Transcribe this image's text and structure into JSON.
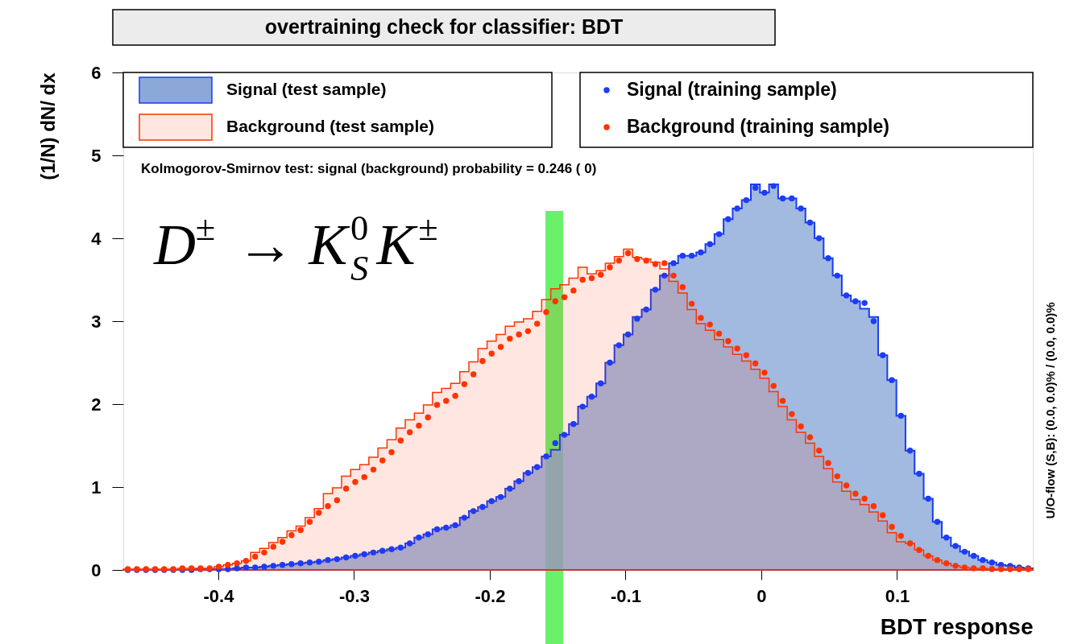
{
  "chart_data": {
    "type": "histogram",
    "title": "overtraining check for classifier: BDT",
    "xlabel": "BDT response",
    "ylabel": "(1/N) dN/ dx",
    "xlim": [
      -0.47,
      0.2
    ],
    "ylim": [
      0,
      6
    ],
    "xticks": [
      -0.4,
      -0.3,
      -0.2,
      -0.1,
      0,
      0.1
    ],
    "yticks": [
      0,
      1,
      2,
      3,
      4,
      5,
      6
    ],
    "legend": "top",
    "marker": "circle",
    "bins": [
      -0.47,
      -0.4633,
      -0.4566,
      -0.4499,
      -0.4432,
      -0.4365,
      -0.4298,
      -0.4231,
      -0.4164,
      -0.4097,
      -0.403,
      -0.3963,
      -0.3896,
      -0.3829,
      -0.3762,
      -0.3695,
      -0.3628,
      -0.3561,
      -0.3494,
      -0.3427,
      -0.336,
      -0.3293,
      -0.3226,
      -0.3159,
      -0.3092,
      -0.3025,
      -0.2958,
      -0.2891,
      -0.2824,
      -0.2757,
      -0.269,
      -0.2623,
      -0.2556,
      -0.2489,
      -0.2422,
      -0.2355,
      -0.2288,
      -0.2221,
      -0.2154,
      -0.2087,
      -0.202,
      -0.1953,
      -0.1886,
      -0.1819,
      -0.1752,
      -0.1685,
      -0.1618,
      -0.1551,
      -0.1484,
      -0.1417,
      -0.135,
      -0.1283,
      -0.1216,
      -0.1149,
      -0.1082,
      -0.1015,
      -0.0948,
      -0.0881,
      -0.0814,
      -0.0747,
      -0.068,
      -0.0613,
      -0.0546,
      -0.0479,
      -0.0412,
      -0.0345,
      -0.0278,
      -0.0211,
      -0.0144,
      -0.0077,
      -0.001,
      0.0057,
      0.0124,
      0.0191,
      0.0258,
      0.0325,
      0.0392,
      0.0459,
      0.0526,
      0.0593,
      0.066,
      0.0727,
      0.0794,
      0.0861,
      0.0928,
      0.0995,
      0.1062,
      0.1129,
      0.1196,
      0.1263,
      0.133,
      0.1397,
      0.1464,
      0.1531,
      0.1598,
      0.1665,
      0.1732,
      0.1799,
      0.1866,
      0.1933,
      0.2
    ],
    "series": [
      {
        "name": "Signal (test sample)",
        "type": "histogram",
        "color": "#8ba8d8",
        "values": [
          0,
          0,
          0,
          0,
          0,
          0,
          0,
          0,
          0.01,
          0.01,
          0.01,
          0.01,
          0.02,
          0.03,
          0.03,
          0.04,
          0.05,
          0.06,
          0.07,
          0.08,
          0.09,
          0.1,
          0.12,
          0.13,
          0.15,
          0.17,
          0.19,
          0.21,
          0.23,
          0.25,
          0.27,
          0.32,
          0.39,
          0.43,
          0.49,
          0.51,
          0.54,
          0.63,
          0.71,
          0.76,
          0.83,
          0.88,
          0.98,
          1.07,
          1.17,
          1.24,
          1.37,
          1.45,
          1.63,
          1.76,
          1.97,
          2.09,
          2.25,
          2.5,
          2.71,
          2.84,
          3.05,
          3.14,
          3.38,
          3.55,
          3.7,
          3.79,
          3.79,
          3.83,
          3.93,
          4.05,
          4.23,
          4.36,
          4.46,
          4.65,
          4.55,
          4.65,
          4.48,
          4.48,
          4.36,
          4.19,
          4.0,
          3.76,
          3.55,
          3.31,
          3.24,
          3.15,
          3.05,
          2.59,
          2.29,
          1.86,
          1.44,
          1.16,
          0.86,
          0.58,
          0.39,
          0.29,
          0.22,
          0.17,
          0.12,
          0.09,
          0.06,
          0.05,
          0.03,
          0.02
        ]
      },
      {
        "name": "Background (test sample)",
        "type": "histogram",
        "color": "#ff3300",
        "values": [
          0.01,
          0.01,
          0.01,
          0.01,
          0.01,
          0.01,
          0.02,
          0.02,
          0.02,
          0.02,
          0.04,
          0.06,
          0.08,
          0.11,
          0.21,
          0.26,
          0.33,
          0.39,
          0.47,
          0.53,
          0.63,
          0.74,
          0.92,
          0.99,
          1.13,
          1.21,
          1.27,
          1.36,
          1.47,
          1.57,
          1.71,
          1.81,
          1.89,
          1.99,
          2.14,
          2.19,
          2.25,
          2.39,
          2.51,
          2.67,
          2.76,
          2.84,
          2.94,
          2.99,
          3.03,
          3.12,
          3.26,
          3.39,
          3.44,
          3.52,
          3.65,
          3.57,
          3.61,
          3.7,
          3.78,
          3.87,
          3.77,
          3.75,
          3.71,
          3.63,
          3.48,
          3.34,
          3.14,
          2.97,
          2.89,
          2.78,
          2.69,
          2.6,
          2.52,
          2.42,
          2.31,
          2.15,
          1.97,
          1.81,
          1.66,
          1.53,
          1.37,
          1.22,
          1.06,
          0.95,
          0.85,
          0.79,
          0.7,
          0.59,
          0.45,
          0.34,
          0.32,
          0.24,
          0.17,
          0.12,
          0.08,
          0.05,
          0.03,
          0.02,
          0.02,
          0.01,
          0.01,
          0.01,
          0.01,
          0.01
        ]
      },
      {
        "name": "Signal (training sample)",
        "type": "scatter",
        "color": "#1c3cf5",
        "x": [
          -0.46665,
          -0.45995,
          -0.45325,
          -0.44655,
          -0.43985,
          -0.43315,
          -0.42645,
          -0.41975,
          -0.41305,
          -0.40635,
          -0.39965,
          -0.39295,
          -0.38625,
          -0.37955,
          -0.37285,
          -0.36615,
          -0.35945,
          -0.35275,
          -0.34605,
          -0.33935,
          -0.33265,
          -0.32595,
          -0.31925,
          -0.31255,
          -0.30585,
          -0.29915,
          -0.29245,
          -0.28575,
          -0.27905,
          -0.27235,
          -0.26565,
          -0.25895,
          -0.25225,
          -0.24555,
          -0.23885,
          -0.23215,
          -0.22545,
          -0.21875,
          -0.21205,
          -0.20535,
          -0.19865,
          -0.19195,
          -0.18525,
          -0.17855,
          -0.17185,
          -0.16515,
          -0.15845,
          -0.15175,
          -0.14505,
          -0.13835,
          -0.13165,
          -0.12495,
          -0.11825,
          -0.11155,
          -0.10485,
          -0.09815,
          -0.09145,
          -0.08475,
          -0.07805,
          -0.07135,
          -0.06465,
          -0.05795,
          -0.05125,
          -0.04455,
          -0.03785,
          -0.03115,
          -0.02445,
          -0.01775,
          -0.01105,
          -0.00435,
          0.00235,
          0.00905,
          0.01575,
          0.02245,
          0.02915,
          0.03585,
          0.04255,
          0.04925,
          0.05595,
          0.06265,
          0.06935,
          0.07605,
          0.08275,
          0.08945,
          0.09615,
          0.10285,
          0.10955,
          0.11625,
          0.12295,
          0.12965,
          0.13635,
          0.14305,
          0.14975,
          0.15645,
          0.16315,
          0.16985,
          0.17655,
          0.18325,
          0.18995,
          0.19665
        ],
        "values": [
          0,
          0,
          0,
          0,
          0,
          0,
          0,
          0,
          0.01,
          0.01,
          0.01,
          0.01,
          0.02,
          0.03,
          0.03,
          0.04,
          0.05,
          0.06,
          0.07,
          0.08,
          0.09,
          0.1,
          0.12,
          0.13,
          0.15,
          0.17,
          0.19,
          0.21,
          0.23,
          0.25,
          0.27,
          0.32,
          0.39,
          0.43,
          0.49,
          0.51,
          0.54,
          0.63,
          0.71,
          0.76,
          0.83,
          0.88,
          0.98,
          1.07,
          1.17,
          1.24,
          1.37,
          1.53,
          1.63,
          1.76,
          1.97,
          2.09,
          2.25,
          2.5,
          2.71,
          2.84,
          3.03,
          3.14,
          3.38,
          3.55,
          3.7,
          3.79,
          3.79,
          3.83,
          3.93,
          4.05,
          4.23,
          4.36,
          4.46,
          4.61,
          4.55,
          4.63,
          4.48,
          4.48,
          4.36,
          4.19,
          4.0,
          3.76,
          3.55,
          3.31,
          3.24,
          3.22,
          3.0,
          2.59,
          2.29,
          1.86,
          1.44,
          1.16,
          0.86,
          0.58,
          0.39,
          0.29,
          0.22,
          0.17,
          0.12,
          0.09,
          0.06,
          0.05,
          0.03,
          0.02
        ]
      },
      {
        "name": "Background (training sample)",
        "type": "scatter",
        "color": "#ff3300",
        "x": [
          -0.46665,
          -0.45995,
          -0.45325,
          -0.44655,
          -0.43985,
          -0.43315,
          -0.42645,
          -0.41975,
          -0.41305,
          -0.40635,
          -0.39965,
          -0.39295,
          -0.38625,
          -0.37955,
          -0.37285,
          -0.36615,
          -0.35945,
          -0.35275,
          -0.34605,
          -0.33935,
          -0.33265,
          -0.32595,
          -0.31925,
          -0.31255,
          -0.30585,
          -0.29915,
          -0.29245,
          -0.28575,
          -0.27905,
          -0.27235,
          -0.26565,
          -0.25895,
          -0.25225,
          -0.24555,
          -0.23885,
          -0.23215,
          -0.22545,
          -0.21875,
          -0.21205,
          -0.20535,
          -0.19865,
          -0.19195,
          -0.18525,
          -0.17855,
          -0.17185,
          -0.16515,
          -0.15845,
          -0.15175,
          -0.14505,
          -0.13835,
          -0.13165,
          -0.12495,
          -0.11825,
          -0.11155,
          -0.10485,
          -0.09815,
          -0.09145,
          -0.08475,
          -0.07805,
          -0.07135,
          -0.06465,
          -0.05795,
          -0.05125,
          -0.04455,
          -0.03785,
          -0.03115,
          -0.02445,
          -0.01775,
          -0.01105,
          -0.00435,
          0.00235,
          0.00905,
          0.01575,
          0.02245,
          0.02915,
          0.03585,
          0.04255,
          0.04925,
          0.05595,
          0.06265,
          0.06935,
          0.07605,
          0.08275,
          0.08945,
          0.09615,
          0.10285,
          0.10955,
          0.11625,
          0.12295,
          0.12965,
          0.13635,
          0.14305,
          0.14975,
          0.15645,
          0.16315,
          0.16985,
          0.17655,
          0.18325,
          0.18995,
          0.19665
        ],
        "values": [
          0.01,
          0.01,
          0.01,
          0.01,
          0.01,
          0.01,
          0.02,
          0.02,
          0.02,
          0.02,
          0.04,
          0.06,
          0.08,
          0.11,
          0.16,
          0.21,
          0.28,
          0.34,
          0.42,
          0.48,
          0.58,
          0.69,
          0.77,
          0.84,
          0.98,
          1.06,
          1.12,
          1.21,
          1.32,
          1.42,
          1.56,
          1.66,
          1.74,
          1.84,
          1.99,
          2.04,
          2.1,
          2.24,
          2.36,
          2.52,
          2.61,
          2.69,
          2.79,
          2.84,
          2.88,
          2.97,
          3.11,
          3.24,
          3.29,
          3.37,
          3.5,
          3.52,
          3.56,
          3.65,
          3.73,
          3.82,
          3.75,
          3.73,
          3.69,
          3.7,
          3.55,
          3.41,
          3.21,
          3.04,
          2.96,
          2.85,
          2.76,
          2.67,
          2.59,
          2.49,
          2.38,
          2.22,
          2.04,
          1.88,
          1.73,
          1.6,
          1.44,
          1.29,
          1.13,
          1.02,
          0.92,
          0.86,
          0.77,
          0.66,
          0.52,
          0.41,
          0.32,
          0.24,
          0.17,
          0.12,
          0.08,
          0.05,
          0.03,
          0.02,
          0.02,
          0.01,
          0.01,
          0.01,
          0.01,
          0.01
        ]
      }
    ],
    "bands": [
      {
        "axis": "x",
        "from": -0.159,
        "to": -0.146,
        "color": "#44ee44"
      }
    ],
    "annotations": [
      "Kolmogorov-Smirnov test: signal (background) probability = 0.246 (    0)",
      "D$^{±}$ → K$_{S}$$^{0}$K$^{±}$",
      "U/O-flow (S,B): (0.0, 0.0)% / (0.0, 0.0)%"
    ]
  }
}
